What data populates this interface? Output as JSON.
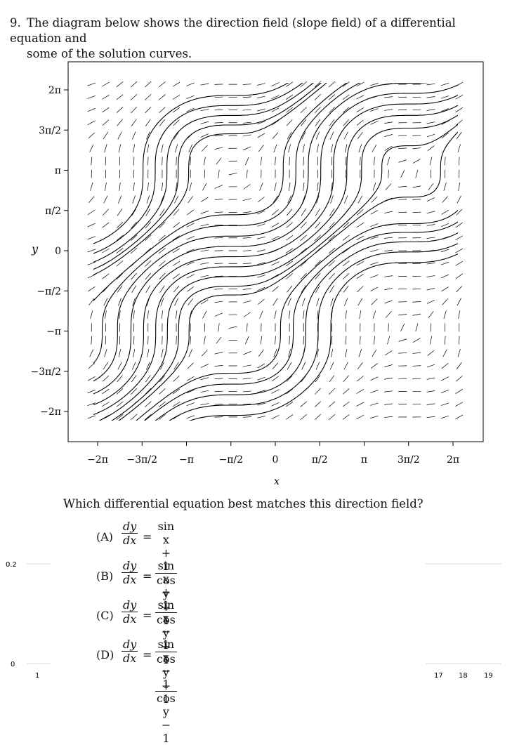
{
  "question": {
    "number": "9.",
    "line1": "The diagram below shows the direction field (slope field) of a differential equation and",
    "line2": "some of the solution curves."
  },
  "chart_data": {
    "type": "direction_field",
    "equation_shown": "dy/dx = (sin x + 1)/(cos y + 1)",
    "xlim": [
      -7.3,
      7.3
    ],
    "ylim": [
      -7.3,
      7.3
    ],
    "x_ticks": [
      "−2π",
      "−3π/2",
      "−π",
      "−π/2",
      "0",
      "π/2",
      "π",
      "3π/2",
      "2π"
    ],
    "y_ticks": [
      "2π",
      "3π/2",
      "π",
      "π/2",
      "0",
      "−π/2",
      "−π",
      "−3π/2",
      "−2π"
    ],
    "xlabel": "x",
    "ylabel": "y",
    "singular_points": [
      [
        -4.712,
        3.142
      ],
      [
        1.571,
        3.142
      ],
      [
        -4.712,
        -3.142
      ],
      [
        1.571,
        -3.142
      ]
    ],
    "grid": false
  },
  "prompt": "Which differential equation best matches this direction field?",
  "choices": [
    {
      "label": "(A)",
      "lhs_num": "dy",
      "lhs_den": "dx",
      "eq": "=",
      "rhs_num": "sin x + 1",
      "rhs_den": "cos y + 1"
    },
    {
      "label": "(B)",
      "lhs_num": "dy",
      "lhs_den": "dx",
      "eq": "=",
      "rhs_num": "sin x + 1",
      "rhs_den": "cos y − 1"
    },
    {
      "label": "(C)",
      "lhs_num": "dy",
      "lhs_den": "dx",
      "eq": "=",
      "rhs_num": "sin x − 1",
      "rhs_den": "cos y + 1"
    },
    {
      "label": "(D)",
      "lhs_num": "dy",
      "lhs_den": "dx",
      "eq": "=",
      "rhs_num": "sin x − 1",
      "rhs_den": "cos y − 1"
    }
  ],
  "overlay": {
    "left_labels": [
      "0.2",
      "0"
    ],
    "left_bottom_label": "1",
    "right_bottom_labels": [
      "17",
      "18",
      "19"
    ]
  }
}
